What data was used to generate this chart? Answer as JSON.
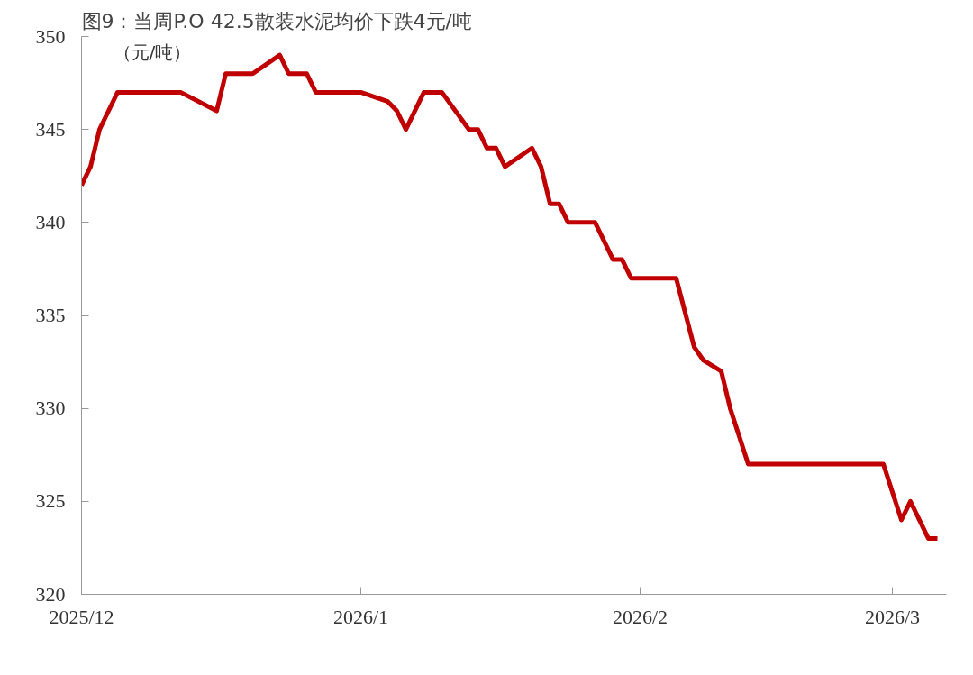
{
  "chart_data": {
    "type": "line",
    "title": "图9：当周P.O 42.5散装水泥均价下跌4元/吨",
    "ylabel": "（元/吨）",
    "x": [
      "2025-12-01",
      "2025-12-02",
      "2025-12-03",
      "2025-12-04",
      "2025-12-05",
      "2025-12-06",
      "2025-12-12",
      "2025-12-16",
      "2025-12-17",
      "2025-12-20",
      "2025-12-23",
      "2025-12-24",
      "2025-12-26",
      "2025-12-27",
      "2025-12-28",
      "2026-01-01",
      "2026-01-04",
      "2026-01-05",
      "2026-01-06",
      "2026-01-08",
      "2026-01-10",
      "2026-01-13",
      "2026-01-14",
      "2026-01-15",
      "2026-01-16",
      "2026-01-17",
      "2026-01-20",
      "2026-01-21",
      "2026-01-22",
      "2026-01-23",
      "2026-01-24",
      "2026-01-27",
      "2026-01-29",
      "2026-01-30",
      "2026-01-31",
      "2026-02-05",
      "2026-02-07",
      "2026-02-08",
      "2026-02-10",
      "2026-02-11",
      "2026-02-13",
      "2026-02-28",
      "2026-03-02",
      "2026-03-03",
      "2026-03-05",
      "2026-03-06"
    ],
    "series": [
      {
        "color": "#c00000",
        "values": [
          342,
          343,
          345,
          346,
          347,
          347,
          347,
          346,
          348,
          348,
          349,
          348,
          348,
          347,
          347,
          347,
          346.5,
          346,
          345,
          347,
          347,
          345,
          345,
          344,
          344,
          343,
          344,
          343,
          341,
          341,
          340,
          340,
          338,
          338,
          337,
          337,
          333.3,
          332.6,
          332,
          330,
          327,
          327,
          324,
          325,
          323,
          323
        ]
      }
    ],
    "xlim": [
      "2025-12-01",
      "2026-03-07"
    ],
    "ylim": [
      320,
      350
    ],
    "yticks": [
      320,
      325,
      330,
      335,
      340,
      345,
      350
    ],
    "xticks": [
      {
        "value": "2025-12-01",
        "label": "2025/12"
      },
      {
        "value": "2026-01-01",
        "label": "2026/1"
      },
      {
        "value": "2026-02-01",
        "label": "2026/2"
      },
      {
        "value": "2026-03-01",
        "label": "2026/3"
      }
    ],
    "grid": false,
    "marker": "none",
    "line_style": "solid"
  }
}
